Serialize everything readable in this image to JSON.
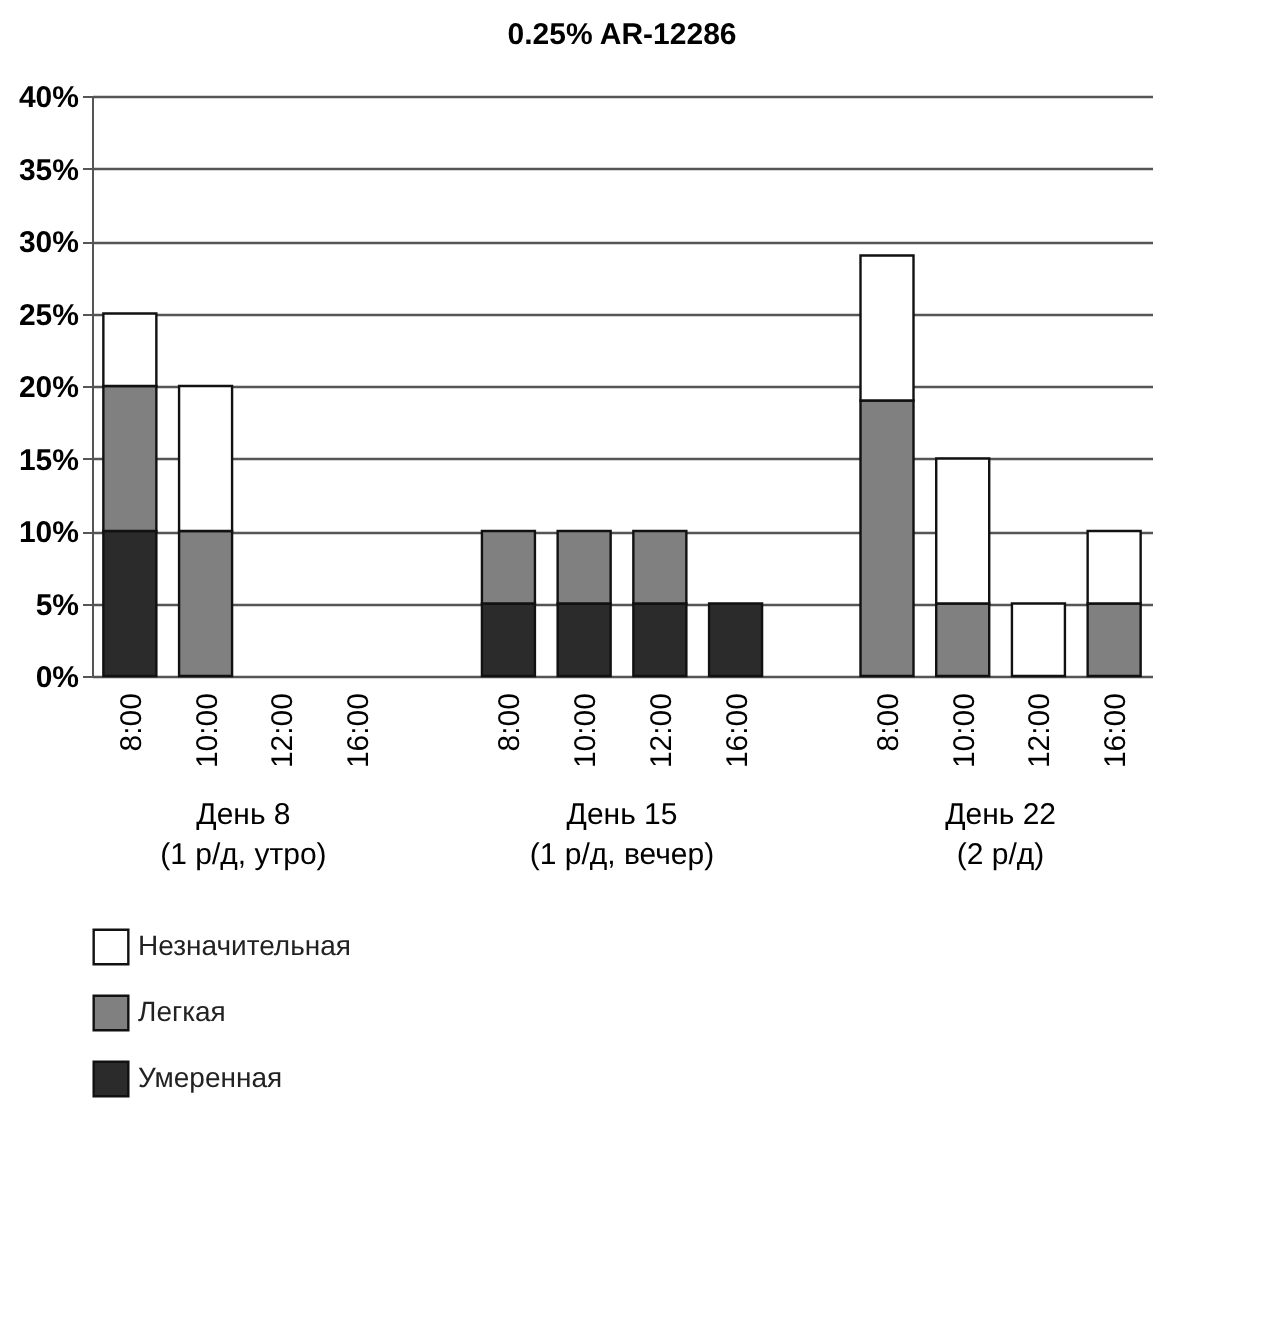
{
  "chart_data": {
    "type": "bar",
    "title": "0.25% AR-12286",
    "stacked": true,
    "legend": "bottom",
    "grid": "y",
    "categories": [
      "8:00",
      "10:00",
      "12:00",
      "16:00",
      null,
      "8:00",
      "10:00",
      "12:00",
      "16:00",
      null,
      "8:00",
      "10:00",
      "12:00",
      "16:00"
    ],
    "annotations": [
      "День 8\n(1 р/д, утро)",
      "День 15\n(1 р/д, вечер)",
      "День 22\n(2 р/д)"
    ],
    "ylim": [
      0,
      40
    ],
    "yticks": [
      {
        "value": 0,
        "label": "0%"
      },
      {
        "value": 5,
        "label": "5%"
      },
      {
        "value": 10,
        "label": "10%"
      },
      {
        "value": 15,
        "label": "15%"
      },
      {
        "value": 20,
        "label": "20%"
      },
      {
        "value": 25,
        "label": "25%"
      },
      {
        "value": 30,
        "label": "30%"
      },
      {
        "value": 35,
        "label": "35%"
      },
      {
        "value": 40,
        "label": "40%"
      }
    ],
    "series": [
      {
        "name": "Умеренная",
        "color": "#2b2b2b",
        "values": [
          10,
          0,
          0,
          0,
          null,
          5,
          5,
          5,
          5,
          null,
          0,
          0,
          0,
          0
        ]
      },
      {
        "name": "Легкая",
        "color": "#808080",
        "values": [
          10,
          10,
          0,
          0,
          null,
          5,
          5,
          5,
          0,
          null,
          19,
          5,
          0,
          5
        ]
      },
      {
        "name": "Незначительная",
        "color": "#ffffff",
        "values": [
          5,
          10,
          0,
          0,
          null,
          0,
          0,
          0,
          0,
          null,
          10,
          10,
          5,
          5
        ]
      }
    ]
  }
}
